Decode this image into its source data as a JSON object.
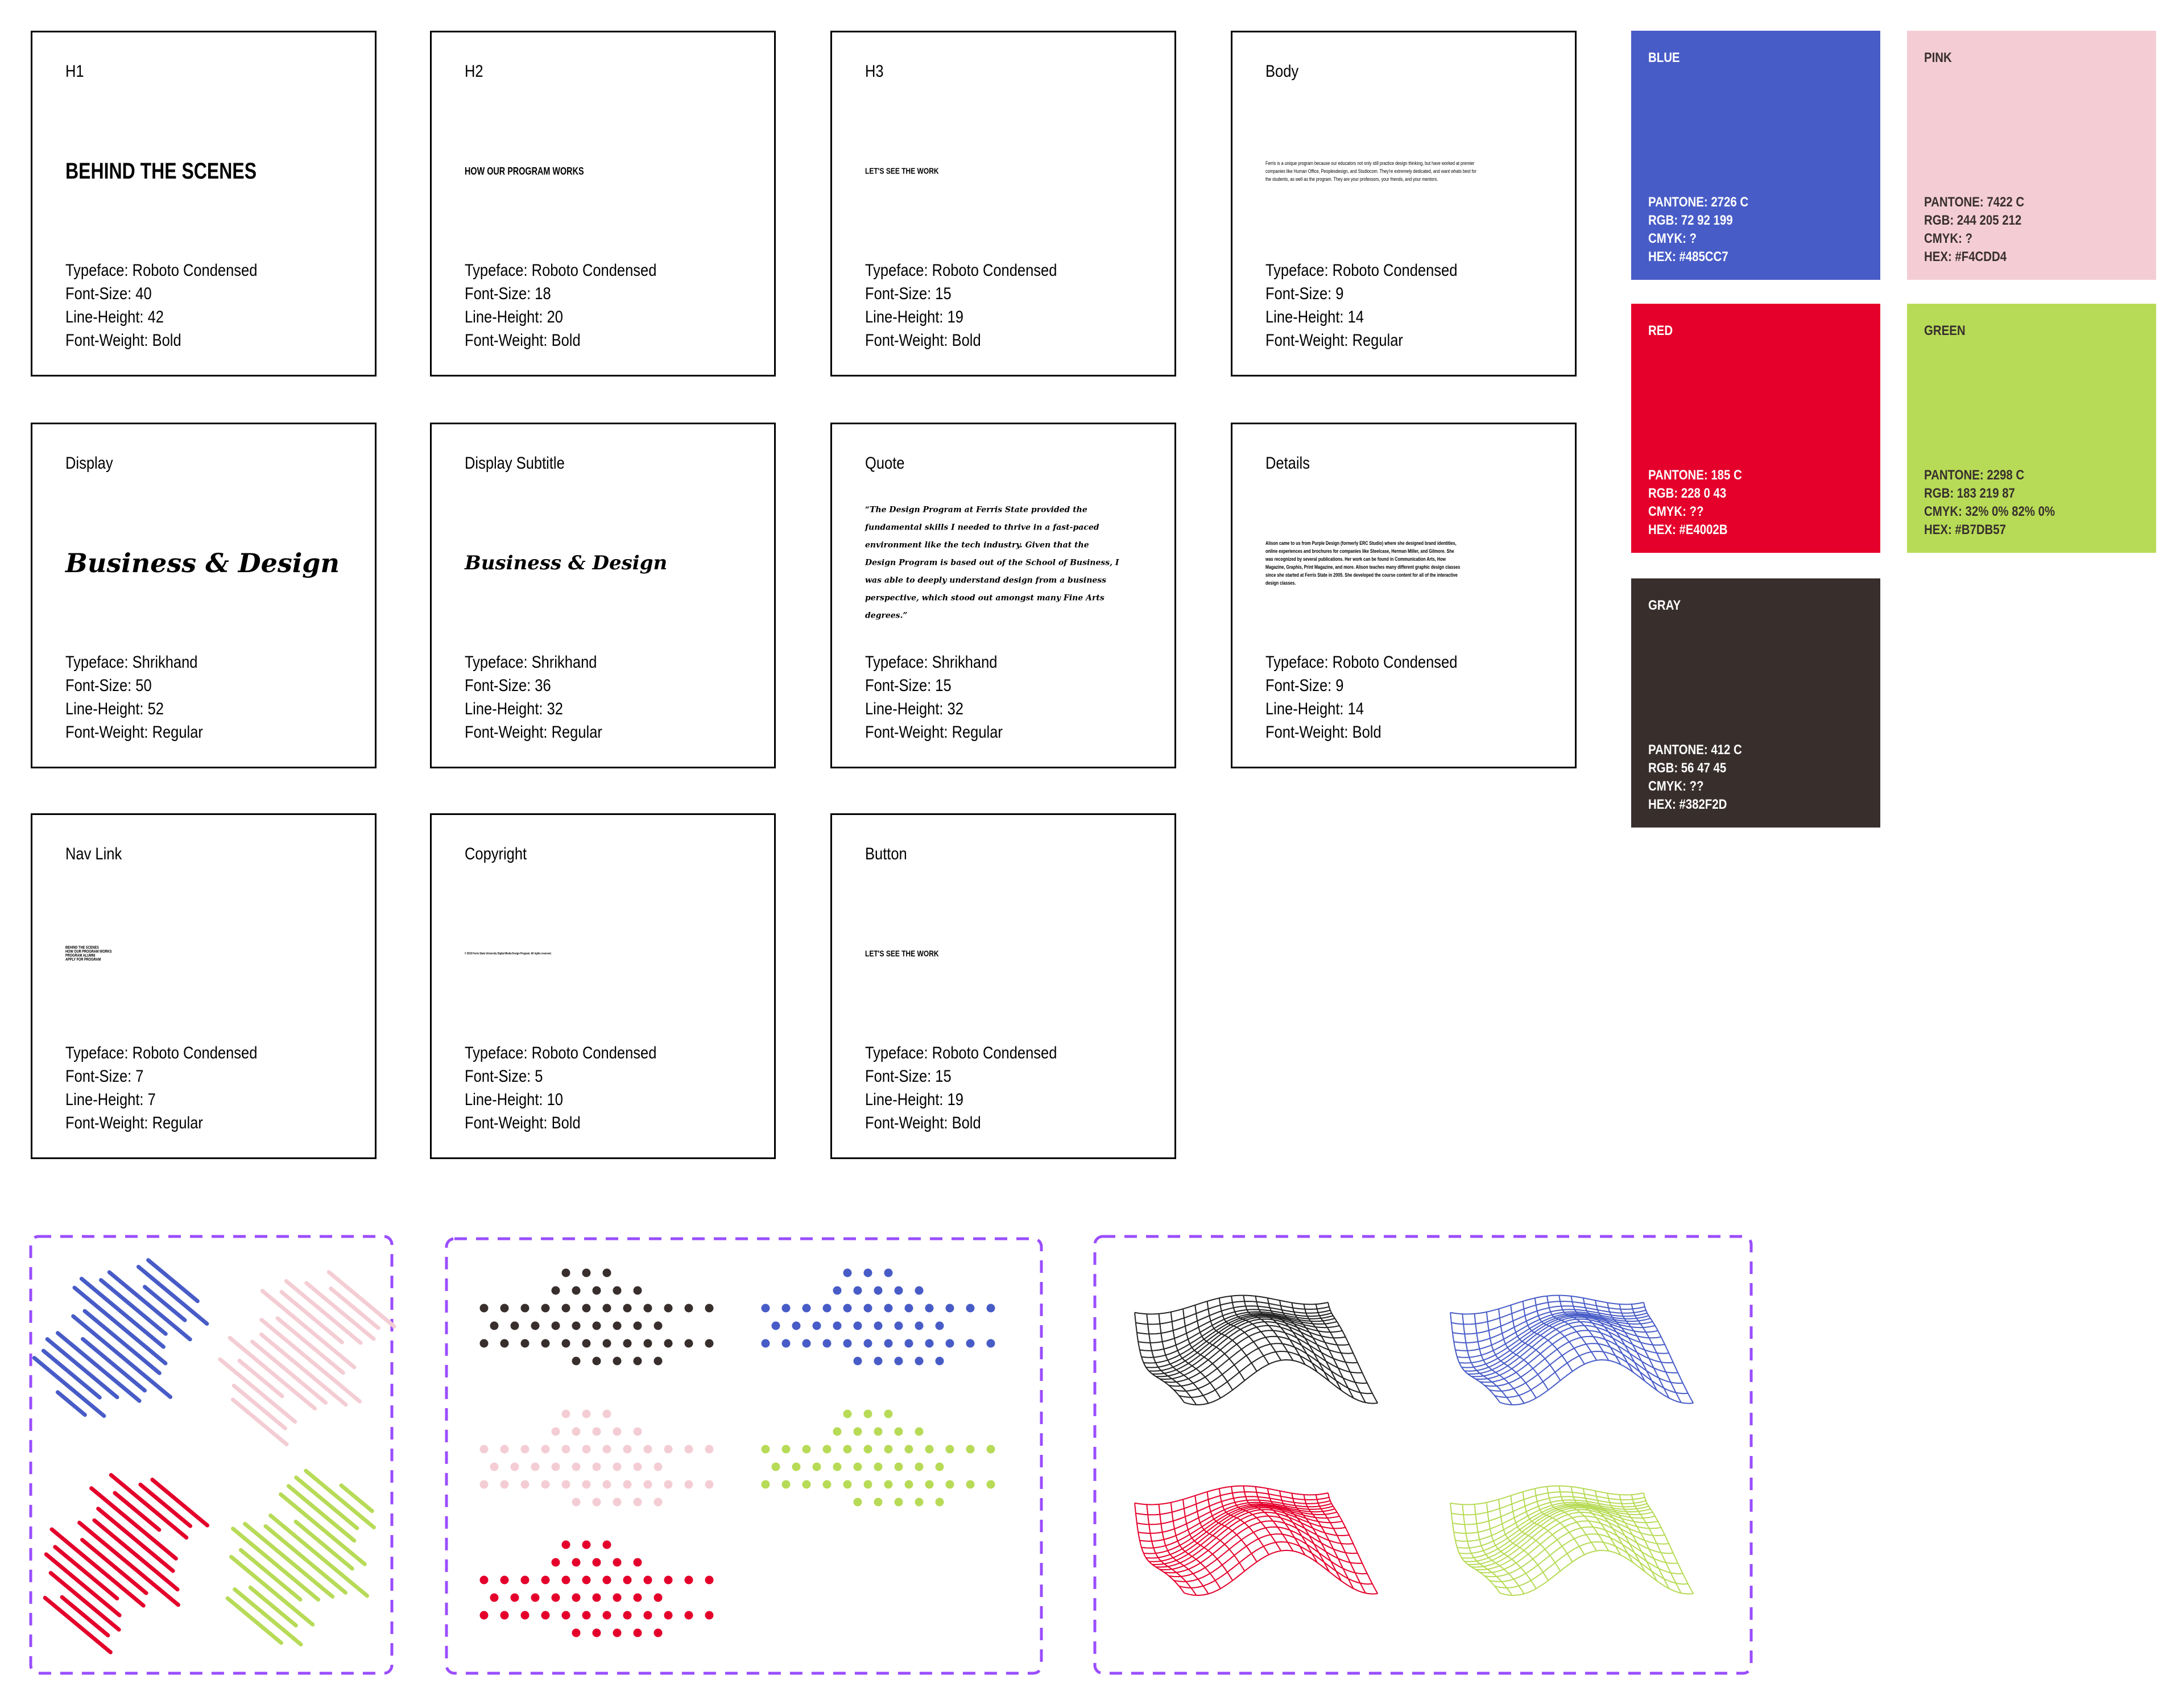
{
  "type_styles": [
    {
      "label": "H1",
      "sample": "BEHIND THE SCENES",
      "specs": [
        "Typeface: Roboto Condensed",
        "Font-Size: 40",
        "Line-Height: 42",
        "Font-Weight: Bold"
      ]
    },
    {
      "label": "H2",
      "sample": "HOW OUR PROGRAM WORKS",
      "specs": [
        "Typeface: Roboto Condensed",
        "Font-Size: 18",
        "Line-Height: 20",
        "Font-Weight: Bold"
      ]
    },
    {
      "label": "H3",
      "sample": "LET'S SEE THE WORK",
      "specs": [
        "Typeface: Roboto Condensed",
        "Font-Size: 15",
        "Line-Height: 19",
        "Font-Weight: Bold"
      ]
    },
    {
      "label": "Body",
      "sample": "Ferris is a unique program because our educators not only still practice design thinking, but have worked at premier companies like Human Office, Peoplesdesign, and Studiocom. They're extremely dedicated, and want whats best for the students, as well as the program. They are your professors, your friends, and your mentors.",
      "specs": [
        "Typeface: Roboto Condensed",
        "Font-Size: 9",
        "Line-Height: 14",
        "Font-Weight: Regular"
      ]
    },
    {
      "label": "Display",
      "sample": "Business & Design",
      "specs": [
        "Typeface: Shrikhand",
        "Font-Size: 50",
        "Line-Height: 52",
        "Font-Weight: Regular"
      ]
    },
    {
      "label": "Display Subtitle",
      "sample": "Business & Design",
      "specs": [
        "Typeface: Shrikhand",
        "Font-Size: 36",
        "Line-Height: 32",
        "Font-Weight: Regular"
      ]
    },
    {
      "label": "Quote",
      "sample": "“The Design Program at Ferris State provided the fundamental skills I needed to thrive in a fast-paced environment like the tech industry. Given that the Design Program is based out of the School of Business, I was able to deeply understand design from a business perspective, which stood out amongst many Fine Arts degrees.”",
      "specs": [
        "Typeface: Shrikhand",
        "Font-Size: 15",
        "Line-Height: 32",
        "Font-Weight: Regular"
      ]
    },
    {
      "label": "Details",
      "sample": "Alison came to us from Purple Design (formerly ERC Studio) where she designed brand identities, online experiences and brochures for companies like Steelcase, Herman Miller, and Gilmore. She was recognized by several publications. Her work can be found in Communication Arts, How Magazine, Graphis, Print Magazine, and more. Alison teaches many different graphic design classes since she started at Ferris State in 2005. She developed the course content for all of the interactive design classes.",
      "specs": [
        "Typeface: Roboto Condensed",
        "Font-Size: 9",
        "Line-Height: 14",
        "Font-Weight: Bold"
      ]
    },
    {
      "label": "Nav Link",
      "sample": [
        "BEHIND THE SCENES",
        "HOW OUR PROGRAM WORKS",
        "PROGRAM ALUMNI",
        "APPLY FOR PROGRAM"
      ],
      "specs": [
        "Typeface: Roboto Condensed",
        "Font-Size: 7",
        "Line-Height: 7",
        "Font-Weight: Regular"
      ]
    },
    {
      "label": "Copyright",
      "sample": "© 2019 Ferris State University Digital Media Design Program. All rights reserved.",
      "specs": [
        "Typeface: Roboto Condensed",
        "Font-Size: 5",
        "Line-Height: 10",
        "Font-Weight: Bold"
      ]
    },
    {
      "label": "Button",
      "sample": "LET'S SEE THE WORK",
      "specs": [
        "Typeface: Roboto Condensed",
        "Font-Size: 15",
        "Line-Height: 19",
        "Font-Weight: Bold"
      ]
    }
  ],
  "swatches": [
    {
      "name": "BLUE",
      "lines": [
        "PANTONE: 2726 C",
        "RGB: 72 92 199",
        "CMYK: ?",
        "HEX: #485CC7"
      ]
    },
    {
      "name": "PINK",
      "lines": [
        "PANTONE: 7422 C",
        "RGB: 244 205 212",
        "CMYK: ?",
        "HEX: #F4CDD4"
      ]
    },
    {
      "name": "RED",
      "lines": [
        "PANTONE: 185 C",
        "RGB: 228 0 43",
        "CMYK: ??",
        "HEX: #E4002B"
      ]
    },
    {
      "name": "GREEN",
      "lines": [
        "PANTONE: 2298 C",
        "RGB: 183 219 87",
        "CMYK: 32% 0% 82% 0%",
        "HEX: #B7DB57"
      ]
    },
    {
      "name": "GRAY",
      "lines": [
        "PANTONE: 412 C",
        "RGB: 56 47 45",
        "CMYK: ??",
        "HEX: #382F2D"
      ]
    }
  ]
}
